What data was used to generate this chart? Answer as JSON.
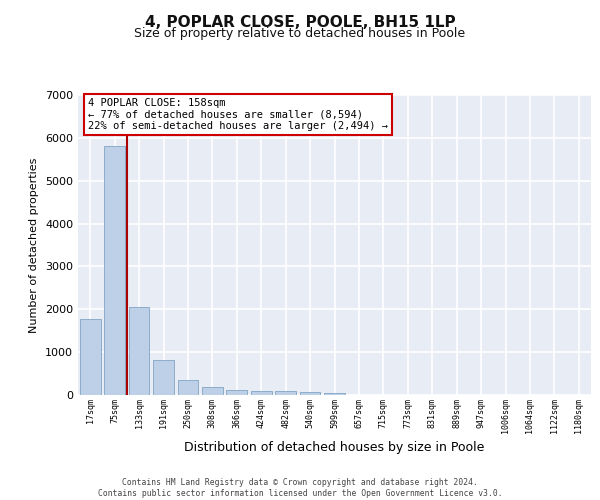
{
  "title_line1": "4, POPLAR CLOSE, POOLE, BH15 1LP",
  "title_line2": "Size of property relative to detached houses in Poole",
  "xlabel": "Distribution of detached houses by size in Poole",
  "ylabel": "Number of detached properties",
  "bar_color": "#bdd0e8",
  "bar_edge_color": "#7099bb",
  "background_color": "#e8edf5",
  "grid_color": "#ffffff",
  "categories": [
    "17sqm",
    "75sqm",
    "133sqm",
    "191sqm",
    "250sqm",
    "308sqm",
    "366sqm",
    "424sqm",
    "482sqm",
    "540sqm",
    "599sqm",
    "657sqm",
    "715sqm",
    "773sqm",
    "831sqm",
    "889sqm",
    "947sqm",
    "1006sqm",
    "1064sqm",
    "1122sqm",
    "1180sqm"
  ],
  "values": [
    1780,
    5800,
    2060,
    820,
    340,
    190,
    115,
    100,
    90,
    75,
    55,
    0,
    0,
    0,
    0,
    0,
    0,
    0,
    0,
    0,
    0
  ],
  "ylim": [
    0,
    7000
  ],
  "yticks": [
    0,
    1000,
    2000,
    3000,
    4000,
    5000,
    6000,
    7000
  ],
  "vline_pos": 1.5,
  "vline_color": "#aa0000",
  "annotation_text": "4 POPLAR CLOSE: 158sqm\n← 77% of detached houses are smaller (8,594)\n22% of semi-detached houses are larger (2,494) →",
  "ann_box_fc": "#ffffff",
  "ann_box_ec": "#cc0000",
  "footer_line1": "Contains HM Land Registry data © Crown copyright and database right 2024.",
  "footer_line2": "Contains public sector information licensed under the Open Government Licence v3.0."
}
